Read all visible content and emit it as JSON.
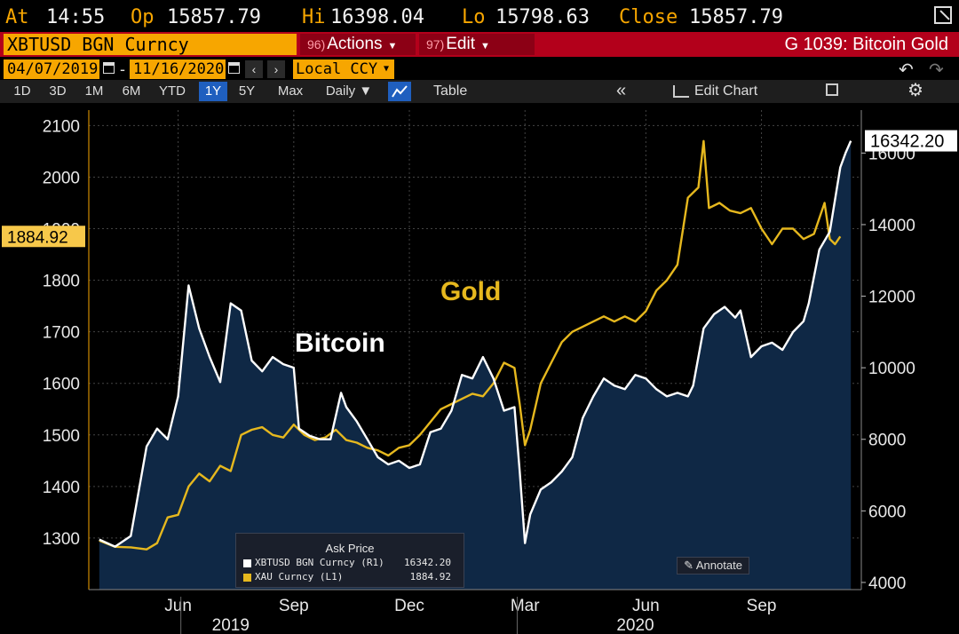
{
  "quote": {
    "at_label": "At",
    "at_value": "14:55",
    "op_label": "Op",
    "op_value": "15857.79",
    "hi_label": "Hi",
    "hi_value": "16398.04",
    "lo_label": "Lo",
    "lo_value": "15798.63",
    "close_label": "Close",
    "close_value": "15857.79"
  },
  "header": {
    "ticker": "XBTUSD BGN Curncy",
    "actions_num": "96)",
    "actions_label": "Actions",
    "edit_num": "97)",
    "edit_label": "Edit",
    "title": "G 1039: Bitcoin Gold"
  },
  "dates": {
    "start": "04/07/2019",
    "end": "11/16/2020",
    "currency": "Local CCY"
  },
  "ranges": [
    "1D",
    "3D",
    "1M",
    "6M",
    "YTD",
    "1Y",
    "5Y",
    "Max"
  ],
  "active_range": "1Y",
  "frequency": "Daily",
  "toolbar": {
    "table_label": "Table",
    "edit_chart_label": "Edit Chart"
  },
  "legend": {
    "header": "Ask Price",
    "btc_name": "XBTUSD BGN Curncy  (R1)",
    "btc_value": "16342.20",
    "gold_name": "XAU Curncy  (L1)",
    "gold_value": "1884.92"
  },
  "annotate_label": "Annotate",
  "colors": {
    "bitcoin": "#ffffff",
    "gold": "#e6b81e",
    "area": "#0f2845",
    "accent": "#f7a600",
    "header": "#b3001b"
  },
  "chart_data": {
    "type": "line",
    "title": "",
    "annotations": [
      "Bitcoin",
      "Gold"
    ],
    "x_ticks": [
      {
        "label": "Jun",
        "t": 0.15
      },
      {
        "label": "Sep",
        "t": 0.37
      },
      {
        "label": "Dec",
        "t": 0.59
      },
      {
        "label": "Mar",
        "t": 0.81
      },
      {
        "label": "Jun",
        "t": 1.04
      },
      {
        "label": "Sep",
        "t": 1.26
      }
    ],
    "x_years": [
      {
        "label": "2019",
        "t": 0.25
      },
      {
        "label": "2020",
        "t": 1.02
      }
    ],
    "y_left": {
      "ticks": [
        1300,
        1400,
        1500,
        1600,
        1700,
        1800,
        1900,
        2000,
        2100
      ],
      "range": [
        1200,
        2130
      ]
    },
    "y_right": {
      "ticks": [
        4000,
        6000,
        8000,
        10000,
        12000,
        14000,
        16000
      ],
      "range": [
        3800,
        17200
      ]
    },
    "last_labels": {
      "left": "1884.92",
      "right": "16342.20"
    },
    "series": [
      {
        "name": "XBTUSD BGN Curncy",
        "axis": "right",
        "points": [
          [
            0.0,
            5200
          ],
          [
            0.03,
            5000
          ],
          [
            0.06,
            5300
          ],
          [
            0.09,
            7800
          ],
          [
            0.11,
            8300
          ],
          [
            0.13,
            8000
          ],
          [
            0.15,
            9200
          ],
          [
            0.17,
            12300
          ],
          [
            0.19,
            11100
          ],
          [
            0.21,
            10300
          ],
          [
            0.23,
            9600
          ],
          [
            0.25,
            11800
          ],
          [
            0.27,
            11600
          ],
          [
            0.29,
            10200
          ],
          [
            0.31,
            9900
          ],
          [
            0.33,
            10300
          ],
          [
            0.35,
            10100
          ],
          [
            0.37,
            10000
          ],
          [
            0.38,
            8300
          ],
          [
            0.4,
            8100
          ],
          [
            0.42,
            8000
          ],
          [
            0.44,
            8000
          ],
          [
            0.46,
            9300
          ],
          [
            0.47,
            8900
          ],
          [
            0.49,
            8500
          ],
          [
            0.51,
            8000
          ],
          [
            0.53,
            7500
          ],
          [
            0.55,
            7300
          ],
          [
            0.57,
            7400
          ],
          [
            0.59,
            7200
          ],
          [
            0.61,
            7300
          ],
          [
            0.63,
            8200
          ],
          [
            0.65,
            8300
          ],
          [
            0.67,
            8800
          ],
          [
            0.69,
            9800
          ],
          [
            0.71,
            9700
          ],
          [
            0.73,
            10300
          ],
          [
            0.75,
            9700
          ],
          [
            0.77,
            8800
          ],
          [
            0.79,
            8900
          ],
          [
            0.8,
            7100
          ],
          [
            0.81,
            5100
          ],
          [
            0.82,
            5900
          ],
          [
            0.84,
            6600
          ],
          [
            0.86,
            6800
          ],
          [
            0.88,
            7100
          ],
          [
            0.9,
            7500
          ],
          [
            0.92,
            8600
          ],
          [
            0.94,
            9200
          ],
          [
            0.96,
            9700
          ],
          [
            0.98,
            9500
          ],
          [
            1.0,
            9400
          ],
          [
            1.02,
            9800
          ],
          [
            1.04,
            9700
          ],
          [
            1.06,
            9400
          ],
          [
            1.08,
            9200
          ],
          [
            1.1,
            9300
          ],
          [
            1.12,
            9200
          ],
          [
            1.13,
            9500
          ],
          [
            1.15,
            11100
          ],
          [
            1.17,
            11500
          ],
          [
            1.19,
            11700
          ],
          [
            1.21,
            11400
          ],
          [
            1.22,
            11600
          ],
          [
            1.24,
            10300
          ],
          [
            1.26,
            10600
          ],
          [
            1.28,
            10700
          ],
          [
            1.3,
            10500
          ],
          [
            1.32,
            11000
          ],
          [
            1.34,
            11300
          ],
          [
            1.35,
            11800
          ],
          [
            1.37,
            13300
          ],
          [
            1.39,
            13800
          ],
          [
            1.41,
            15600
          ],
          [
            1.42,
            16000
          ],
          [
            1.43,
            16342
          ]
        ]
      },
      {
        "name": "XAU Curncy",
        "axis": "left",
        "points": [
          [
            0.0,
            1295
          ],
          [
            0.03,
            1283
          ],
          [
            0.06,
            1282
          ],
          [
            0.09,
            1278
          ],
          [
            0.11,
            1290
          ],
          [
            0.13,
            1340
          ],
          [
            0.15,
            1345
          ],
          [
            0.17,
            1400
          ],
          [
            0.19,
            1425
          ],
          [
            0.21,
            1410
          ],
          [
            0.23,
            1440
          ],
          [
            0.25,
            1430
          ],
          [
            0.27,
            1500
          ],
          [
            0.29,
            1510
          ],
          [
            0.31,
            1515
          ],
          [
            0.33,
            1500
          ],
          [
            0.35,
            1495
          ],
          [
            0.37,
            1520
          ],
          [
            0.39,
            1500
          ],
          [
            0.41,
            1490
          ],
          [
            0.43,
            1495
          ],
          [
            0.45,
            1510
          ],
          [
            0.47,
            1490
          ],
          [
            0.49,
            1485
          ],
          [
            0.51,
            1475
          ],
          [
            0.53,
            1470
          ],
          [
            0.55,
            1460
          ],
          [
            0.57,
            1475
          ],
          [
            0.59,
            1480
          ],
          [
            0.61,
            1500
          ],
          [
            0.63,
            1525
          ],
          [
            0.65,
            1550
          ],
          [
            0.67,
            1560
          ],
          [
            0.69,
            1570
          ],
          [
            0.71,
            1580
          ],
          [
            0.73,
            1575
          ],
          [
            0.75,
            1600
          ],
          [
            0.77,
            1640
          ],
          [
            0.79,
            1630
          ],
          [
            0.8,
            1560
          ],
          [
            0.81,
            1480
          ],
          [
            0.82,
            1510
          ],
          [
            0.84,
            1600
          ],
          [
            0.86,
            1640
          ],
          [
            0.88,
            1680
          ],
          [
            0.9,
            1700
          ],
          [
            0.92,
            1710
          ],
          [
            0.94,
            1720
          ],
          [
            0.96,
            1730
          ],
          [
            0.98,
            1720
          ],
          [
            1.0,
            1730
          ],
          [
            1.02,
            1720
          ],
          [
            1.04,
            1740
          ],
          [
            1.06,
            1780
          ],
          [
            1.08,
            1800
          ],
          [
            1.1,
            1830
          ],
          [
            1.12,
            1960
          ],
          [
            1.14,
            1980
          ],
          [
            1.15,
            2070
          ],
          [
            1.16,
            1940
          ],
          [
            1.18,
            1950
          ],
          [
            1.2,
            1935
          ],
          [
            1.22,
            1930
          ],
          [
            1.24,
            1940
          ],
          [
            1.26,
            1900
          ],
          [
            1.28,
            1870
          ],
          [
            1.3,
            1900
          ],
          [
            1.32,
            1900
          ],
          [
            1.34,
            1880
          ],
          [
            1.36,
            1890
          ],
          [
            1.38,
            1950
          ],
          [
            1.39,
            1880
          ],
          [
            1.4,
            1870
          ],
          [
            1.41,
            1885
          ]
        ]
      }
    ]
  }
}
